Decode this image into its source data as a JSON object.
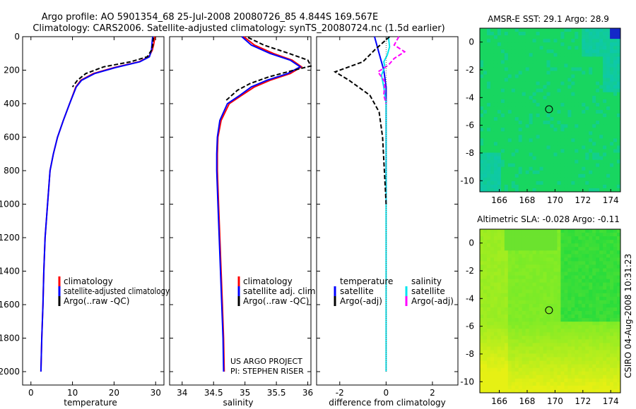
{
  "title_line1": "Argo profile: AO 5901354_68 25-Jul-2008 20080726_85 4.844S 169.567E",
  "title_line2": "Climatology: CARS2006. Satellite-adjusted climatology: synTS_20080724.nc (1.5d earlier)",
  "side_label": "CSIRO 04-Aug-2008 10:31:23",
  "colors": {
    "climatology": "#ff0000",
    "satellite": "#0000ff",
    "argo": "#000000",
    "sat_sal": "#00e5ee",
    "argo_sal": "#ff00ff",
    "dotted": "#555555"
  },
  "chart_data": [
    {
      "id": "temperature",
      "type": "line",
      "xlabel": "temperature",
      "ylabel": "",
      "xlim": [
        -2,
        32
      ],
      "ylim": [
        2080,
        0
      ],
      "xticks": [
        0,
        10,
        20,
        30
      ],
      "yticks": [
        0,
        200,
        400,
        600,
        800,
        1000,
        1200,
        1400,
        1600,
        1800,
        2000
      ],
      "legend": [
        "climatology",
        "satellite-adjusted climatology",
        "Argo(..raw -QC)"
      ],
      "series": [
        {
          "name": "climatology",
          "color": "#ff0000",
          "dash": "",
          "x": [
            29.8,
            29.7,
            29.5,
            29.2,
            28.4,
            26.0,
            20.0,
            15.0,
            12.0,
            10.8,
            9.3,
            7.8,
            6.4,
            5.4,
            4.6,
            4.0,
            3.4,
            3.1,
            2.9,
            2.6,
            2.4
          ],
          "y": [
            0,
            20,
            50,
            80,
            120,
            150,
            185,
            220,
            260,
            300,
            400,
            500,
            600,
            700,
            800,
            1000,
            1200,
            1400,
            1600,
            1800,
            2000
          ]
        },
        {
          "name": "satellite-adjusted climatology",
          "color": "#0000ff",
          "dash": "",
          "x": [
            29.3,
            29.2,
            29.1,
            29.0,
            28.5,
            26.2,
            20.3,
            15.3,
            12.2,
            10.9,
            9.3,
            7.8,
            6.4,
            5.4,
            4.6,
            4.0,
            3.4,
            3.1,
            2.9,
            2.6,
            2.4
          ],
          "y": [
            0,
            20,
            50,
            80,
            120,
            150,
            185,
            220,
            260,
            300,
            400,
            500,
            600,
            700,
            800,
            1000,
            1200,
            1400,
            1600,
            1800,
            2000
          ]
        },
        {
          "name": "Argo(..raw -QC)",
          "color": "#000000",
          "dash": "6,3",
          "x": [
            29.5,
            29.4,
            29.3,
            29.0,
            28.0,
            24.0,
            17.5,
            13.2,
            11.2,
            10.0
          ],
          "y": [
            5,
            20,
            50,
            80,
            120,
            150,
            180,
            220,
            260,
            300
          ]
        }
      ]
    },
    {
      "id": "salinity",
      "type": "line",
      "xlabel": "salinity",
      "xlim": [
        33.8,
        36.05
      ],
      "ylim": [
        2080,
        0
      ],
      "xticks": [
        34,
        34.5,
        35,
        35.5,
        36
      ],
      "legend": [
        "climatology",
        "satellite adj. clim.",
        "Argo(..raw -QC)"
      ],
      "annotation": [
        "US ARGO PROJECT",
        "PI: STEPHEN RISER"
      ],
      "series": [
        {
          "name": "climatology",
          "color": "#ff0000",
          "dash": "",
          "x": [
            34.98,
            35.15,
            35.45,
            35.75,
            35.9,
            35.72,
            35.4,
            35.15,
            34.95,
            34.75,
            34.62,
            34.57,
            34.56,
            34.56,
            34.58,
            34.6,
            34.62,
            34.64,
            34.66,
            34.67
          ],
          "y": [
            0,
            50,
            100,
            140,
            180,
            220,
            260,
            300,
            350,
            400,
            500,
            600,
            700,
            800,
            1000,
            1200,
            1400,
            1600,
            1800,
            2000
          ]
        },
        {
          "name": "satellite adj. clim.",
          "color": "#0000ff",
          "dash": "",
          "x": [
            34.95,
            35.1,
            35.4,
            35.72,
            35.88,
            35.68,
            35.35,
            35.1,
            34.92,
            34.72,
            34.6,
            34.56,
            34.55,
            34.55,
            34.57,
            34.59,
            34.61,
            34.63,
            34.65,
            34.66
          ],
          "y": [
            0,
            50,
            100,
            140,
            180,
            220,
            260,
            300,
            350,
            400,
            500,
            600,
            700,
            800,
            1000,
            1200,
            1400,
            1600,
            1800,
            2000
          ]
        },
        {
          "name": "Argo(..raw -QC)",
          "color": "#000000",
          "dash": "6,3",
          "x": [
            35.05,
            35.3,
            35.7,
            36.0,
            36.05,
            35.78,
            35.38,
            35.08,
            34.88,
            34.7
          ],
          "y": [
            5,
            50,
            100,
            140,
            175,
            200,
            240,
            280,
            320,
            380
          ]
        }
      ]
    },
    {
      "id": "difference",
      "type": "line",
      "xlabel": "difference from climatology",
      "xlim": [
        -3,
        3.1
      ],
      "ylim": [
        2080,
        0
      ],
      "xticks": [
        -2,
        0,
        2
      ],
      "legend_left_title": "temperature",
      "legend_right_title": "salinity",
      "legend_left": [
        "satellite",
        "Argo(-adj)"
      ],
      "legend_right": [
        "satellite",
        "Argo(-adj)"
      ],
      "series": [
        {
          "name": "temperature satellite",
          "color": "#0000ff",
          "dash": "",
          "x": [
            -0.5,
            -0.3,
            -0.1,
            0.0,
            0.0
          ],
          "y": [
            0,
            100,
            200,
            300,
            1000
          ]
        },
        {
          "name": "salinity satellite",
          "color": "#00e5ee",
          "dash": "",
          "x": [
            0.1,
            0.15,
            0.05,
            -0.1,
            -0.05,
            -0.2,
            -0.1,
            0,
            0,
            0,
            0
          ],
          "y": [
            0,
            60,
            110,
            150,
            180,
            230,
            300,
            400,
            800,
            1500,
            2000
          ]
        },
        {
          "name": "temperature Argo(-adj)",
          "color": "#000000",
          "dash": "6,3",
          "x": [
            0.15,
            -0.5,
            -1.0,
            -2.2,
            -1.6,
            -1.2,
            -0.7,
            -0.5,
            -0.3,
            -0.15,
            0
          ],
          "y": [
            0,
            80,
            150,
            210,
            260,
            300,
            350,
            400,
            450,
            600,
            1000
          ]
        },
        {
          "name": "salinity Argo(-adj)",
          "color": "#ff00ff",
          "dash": "6,3",
          "x": [
            0.55,
            0.35,
            0.8,
            0.35,
            0.1,
            -0.35,
            -0.05,
            -0.1,
            0
          ],
          "y": [
            0,
            50,
            90,
            130,
            170,
            210,
            270,
            350,
            400
          ]
        },
        {
          "name": "zero line",
          "color": "#555555",
          "dash": "1,2",
          "x": [
            0,
            0
          ],
          "y": [
            0,
            2000
          ]
        }
      ]
    },
    {
      "id": "sst_map",
      "type": "heatmap",
      "title": "AMSR-E SST: 29.1  Argo: 28.9",
      "xlim": [
        164.6,
        174.7
      ],
      "ylim": [
        -10.8,
        1
      ],
      "xticks": [
        166,
        168,
        170,
        172,
        174
      ],
      "yticks": [
        0,
        -2,
        -4,
        -6,
        -8,
        -10
      ],
      "marker": {
        "lon": 169.567,
        "lat": -4.844
      }
    },
    {
      "id": "sla_map",
      "type": "heatmap",
      "title": "Altimetric SLA: -0.028  Argo: -0.11",
      "xlim": [
        164.6,
        174.7
      ],
      "ylim": [
        -10.8,
        1
      ],
      "xticks": [
        166,
        168,
        170,
        172,
        174
      ],
      "yticks": [
        0,
        -2,
        -4,
        -6,
        -8,
        -10
      ],
      "marker": {
        "lon": 169.567,
        "lat": -4.844
      }
    }
  ]
}
